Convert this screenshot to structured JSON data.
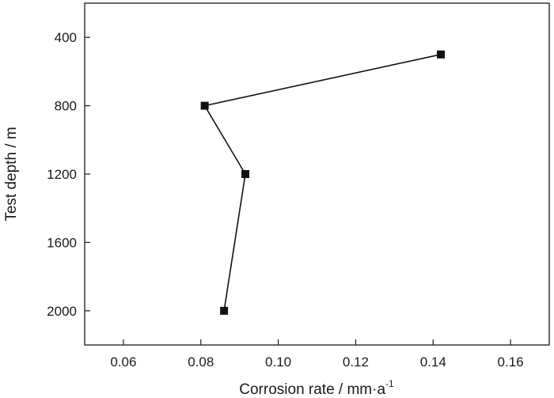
{
  "chart_data": {
    "type": "scatter",
    "title": "",
    "xlabel": "Corrosion rate / mm·a",
    "xlabel_superscript": "-1",
    "ylabel": "Test depth / m",
    "xlim": [
      0.05,
      0.17
    ],
    "ylim": [
      200,
      2200
    ],
    "y_inverted": true,
    "grid": false,
    "legend": "none",
    "x_ticks": [
      0.06,
      0.08,
      0.1,
      0.12,
      0.14,
      0.16
    ],
    "x_tick_labels": [
      "0.06",
      "0.08",
      "0.10",
      "0.12",
      "0.14",
      "0.16"
    ],
    "y_ticks": [
      400,
      800,
      1200,
      1600,
      2000
    ],
    "y_tick_labels": [
      "400",
      "800",
      "1200",
      "1600",
      "2000"
    ],
    "series": [
      {
        "marker": "square",
        "line": true,
        "color": "#111111",
        "points": [
          {
            "x": 0.142,
            "y": 500
          },
          {
            "x": 0.081,
            "y": 800
          },
          {
            "x": 0.0915,
            "y": 1200
          },
          {
            "x": 0.086,
            "y": 2000
          }
        ]
      }
    ]
  }
}
